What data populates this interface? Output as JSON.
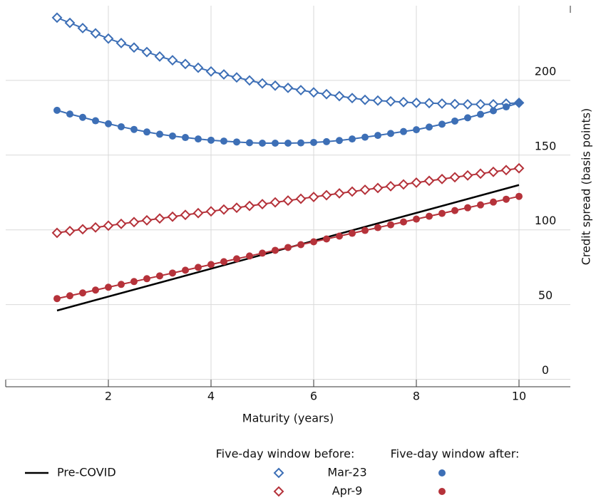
{
  "chart_data": {
    "type": "line",
    "x_label": "Maturity (years)",
    "y_label": "Credit spread (basis points)",
    "xlim": [
      0,
      11
    ],
    "ylim": [
      -5,
      250
    ],
    "xticks": [
      2,
      4,
      6,
      8,
      10
    ],
    "yticks": [
      0,
      50,
      100,
      150,
      200
    ],
    "grid": true,
    "legend_titles": [
      "Five-day window before:",
      "Five-day window after:"
    ],
    "baseline": {
      "name": "Pre-COVID",
      "color": "#000000",
      "x": [
        1,
        10
      ],
      "values": [
        46,
        130
      ]
    },
    "x": [
      1,
      1.25,
      1.5,
      1.75,
      2,
      2.25,
      2.5,
      2.75,
      3,
      3.25,
      3.5,
      3.75,
      4,
      4.25,
      4.5,
      4.75,
      5,
      5.25,
      5.5,
      5.75,
      6,
      6.25,
      6.5,
      6.75,
      7,
      7.25,
      7.5,
      7.75,
      8,
      8.25,
      8.5,
      8.75,
      9,
      9.25,
      9.5,
      9.75,
      10
    ],
    "series": [
      {
        "name": "Mar-23",
        "color": "#3d6fb6",
        "before": [
          242,
          238.5,
          235,
          231.5,
          228,
          225,
          222,
          219,
          216,
          213.5,
          211,
          208.5,
          206,
          204,
          202,
          200,
          198,
          196.5,
          195,
          193.5,
          192,
          190.8,
          189.5,
          188.2,
          187,
          186.5,
          186,
          185.5,
          185,
          184.8,
          184.5,
          184.2,
          184,
          184,
          184,
          184.5,
          185
        ],
        "after": [
          180,
          177.5,
          175.3,
          173,
          171,
          169,
          167.2,
          165.5,
          164,
          162.8,
          161.8,
          160.8,
          160,
          159.4,
          158.8,
          158.3,
          158,
          158,
          158,
          158.2,
          158.5,
          159,
          159.8,
          160.8,
          162,
          163.2,
          164.5,
          165.8,
          167,
          168.8,
          170.7,
          172.8,
          175,
          177.3,
          179.7,
          182.3,
          185
        ]
      },
      {
        "name": "Apr-9",
        "color": "#b5323a",
        "before": [
          98,
          99.2,
          100.4,
          101.6,
          102.8,
          104,
          105.2,
          106.4,
          107.6,
          108.8,
          110,
          111.2,
          112.4,
          113.6,
          114.8,
          116,
          117.2,
          118.4,
          119.6,
          120.8,
          122,
          123.2,
          124.4,
          125.6,
          126.8,
          128,
          129.2,
          130.4,
          131.6,
          132.8,
          134,
          135.2,
          136.4,
          137.6,
          138.8,
          140,
          141.2
        ],
        "after": [
          54,
          55.9,
          57.8,
          59.7,
          61.6,
          63.5,
          65.4,
          67.3,
          69.2,
          71.1,
          73,
          74.9,
          76.8,
          78.7,
          80.6,
          82.5,
          84.4,
          86.3,
          88.2,
          90.1,
          92,
          93.9,
          95.8,
          97.7,
          99.6,
          101.5,
          103.4,
          105.3,
          107.2,
          109.1,
          111,
          112.9,
          114.8,
          116.7,
          118.6,
          120.5,
          122.4
        ]
      }
    ]
  }
}
